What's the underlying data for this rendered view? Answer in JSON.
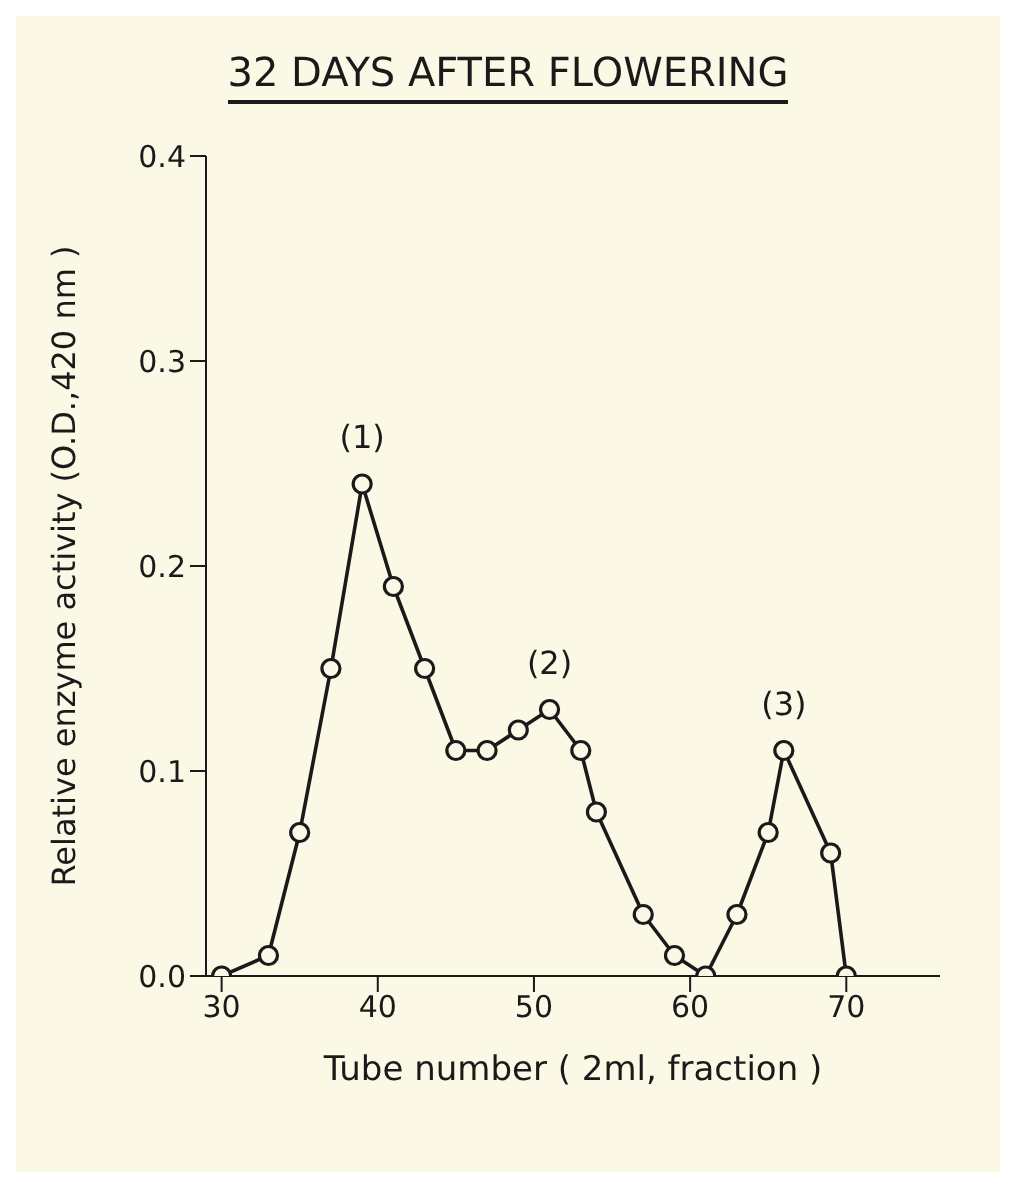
{
  "chart_data": {
    "type": "line",
    "title": "32 DAYS AFTER FLOWERING",
    "xlabel": "Tube number ( 2ml, fraction )",
    "ylabel": "Relative enzyme activity (O.D.,420 nm )",
    "x": [
      30,
      33,
      35,
      37,
      39,
      41,
      43,
      45,
      47,
      49,
      51,
      53,
      54,
      57,
      59,
      61,
      63,
      65,
      66,
      69,
      70
    ],
    "series": [
      {
        "color": "#1a1a1a",
        "values": [
          0,
          0.01,
          0.07,
          0.15,
          0.24,
          0.19,
          0.15,
          0.11,
          0.11,
          0.12,
          0.13,
          0.11,
          0.08,
          0.03,
          0.01,
          0.0,
          0.03,
          0.07,
          0.11,
          0.06,
          0
        ]
      }
    ],
    "xlim": [
      29,
      76
    ],
    "xticks": [
      30,
      40,
      50,
      60,
      70
    ],
    "ylim": [
      0,
      0.4
    ],
    "yticks": [
      {
        "value": 0,
        "label": "0.0"
      },
      0.1,
      0.2,
      0.3,
      0.4
    ],
    "annotations": [
      {
        "text": "(1)",
        "x": 39,
        "y": 0.24
      },
      {
        "text": "(2)",
        "x": 51,
        "y": 0.13
      },
      {
        "text": "(3)",
        "x": 66,
        "y": 0.11
      }
    ],
    "marker": "circle",
    "line_style": "solid",
    "grid": false
  }
}
